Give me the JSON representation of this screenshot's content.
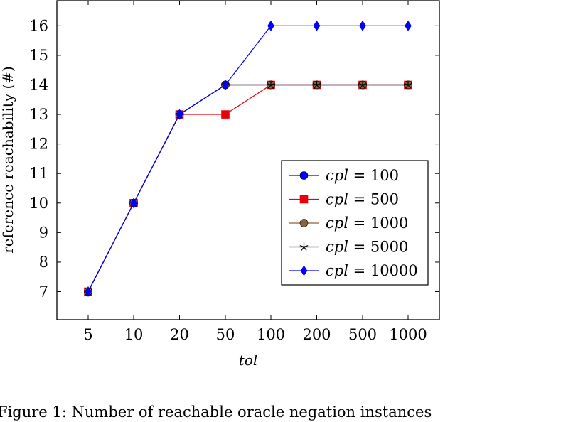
{
  "chart_data": {
    "type": "line",
    "title": "",
    "xlabel": "tol",
    "ylabel": "reference reachability (#)",
    "categories": [
      "5",
      "10",
      "20",
      "50",
      "100",
      "200",
      "500",
      "1000"
    ],
    "ylim": [
      6.05,
      16.85
    ],
    "yticks": [
      7,
      8,
      9,
      10,
      11,
      12,
      13,
      14,
      15,
      16
    ],
    "grid": false,
    "legend_position": "lower-right",
    "series": [
      {
        "name": "cpl = 100",
        "legend_var": "cpl",
        "legend_value": "100",
        "color": "#0000ff",
        "marker": "circle",
        "values": [
          7,
          10,
          13,
          14,
          14,
          14,
          14,
          14
        ]
      },
      {
        "name": "cpl = 500",
        "legend_var": "cpl",
        "legend_value": "500",
        "color": "#e8000b",
        "marker": "square",
        "values": [
          7,
          10,
          13,
          13,
          14,
          14,
          14,
          14
        ]
      },
      {
        "name": "cpl = 1000",
        "legend_var": "cpl",
        "legend_value": "1000",
        "color": "#8c6239",
        "marker": "circle",
        "values": [
          7,
          10,
          13,
          14,
          14,
          14,
          14,
          14
        ]
      },
      {
        "name": "cpl = 5000",
        "legend_var": "cpl",
        "legend_value": "5000",
        "color": "#000000",
        "marker": "star",
        "values": [
          7,
          10,
          13,
          14,
          14,
          14,
          14,
          14
        ]
      },
      {
        "name": "cpl = 10000",
        "legend_var": "cpl",
        "legend_value": "10000",
        "color": "#0000ff",
        "marker": "diamond",
        "values": [
          7,
          10,
          13,
          14,
          16,
          16,
          16,
          16
        ]
      }
    ]
  },
  "caption": "Figure 1: Number of reachable oracle negation instances"
}
